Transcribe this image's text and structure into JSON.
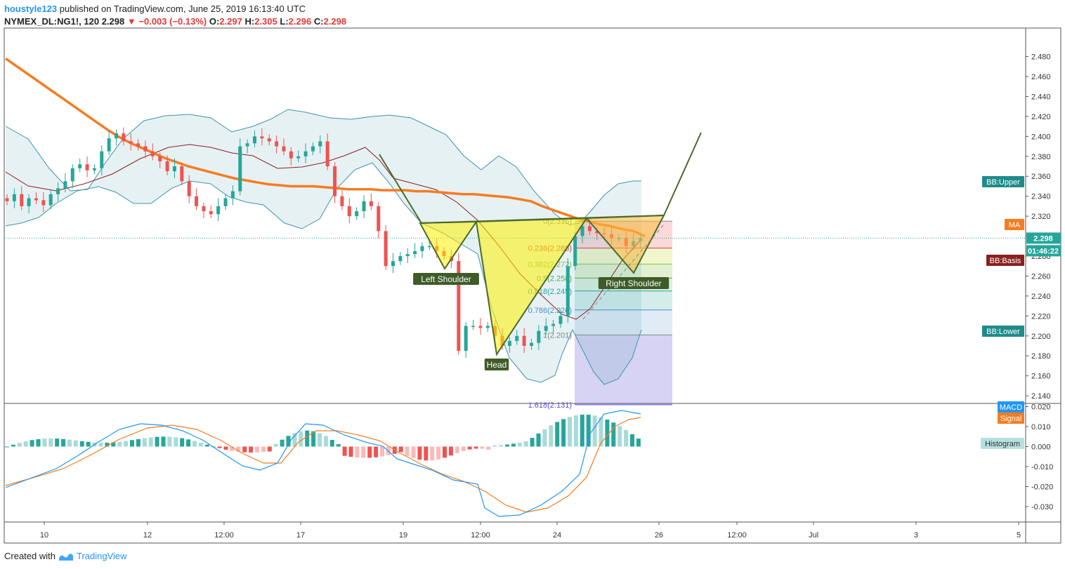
{
  "header": {
    "author": "houstyle123",
    "published": " published on TradingView.com, June 25, 2019 16:13:40 UTC",
    "symbol": "NYMEX_DL:NG1!, 120",
    "last": "2.298",
    "arrow": "▼",
    "change": "−0.003 (−0.13%)",
    "o_label": "O:",
    "o": "2.297",
    "h_label": "H:",
    "h": "2.305",
    "l_label": "L:",
    "l": "2.296",
    "c_label": "C:",
    "c": "2.298"
  },
  "footer": {
    "created": "Created with",
    "brand": "TradingView"
  },
  "colors": {
    "up": "#26a69a",
    "down": "#ef5350",
    "ma": "#f57c20",
    "bb": "#3d95a8",
    "basis": "#8b2020",
    "macd": "#2196f3",
    "signal": "#f57c20"
  },
  "chart_data": [
    {
      "type": "candlestick",
      "title": "",
      "ylim": [
        2.13,
        2.49
      ],
      "yticks": [
        "2.480",
        "2.460",
        "2.440",
        "2.420",
        "2.400",
        "2.380",
        "2.360",
        "2.340",
        "2.320",
        "2.300",
        "2.280",
        "2.260",
        "2.240",
        "2.220",
        "2.200",
        "2.180",
        "2.160",
        "2.140"
      ],
      "xticks": [
        "10",
        "12",
        "12:00",
        "17",
        "19",
        "12:00",
        "24",
        "26",
        "12:00",
        "Jul",
        "3",
        "5"
      ],
      "current_price": "2.298",
      "countdown": "01:46:22",
      "close": [
        2.335,
        2.342,
        2.33,
        2.338,
        2.336,
        2.331,
        2.342,
        2.348,
        2.355,
        2.368,
        2.372,
        2.366,
        2.368,
        2.385,
        2.398,
        2.403,
        2.395,
        2.393,
        2.39,
        2.385,
        2.38,
        2.375,
        2.365,
        2.37,
        2.355,
        2.34,
        2.33,
        2.325,
        2.322,
        2.33,
        2.338,
        2.345,
        2.39,
        2.393,
        2.4,
        2.398,
        2.395,
        2.39,
        2.385,
        2.378,
        2.38,
        2.385,
        2.39,
        2.395,
        2.37,
        2.34,
        2.33,
        2.32,
        2.325,
        2.335,
        2.33,
        2.305,
        2.27,
        2.275,
        2.28,
        2.282,
        2.285,
        2.29,
        2.29,
        2.285,
        2.28,
        2.275,
        2.185,
        2.21,
        2.21,
        2.208,
        2.21,
        2.2,
        2.19,
        2.195,
        2.2,
        2.19,
        2.193,
        2.205,
        2.21,
        2.212,
        2.22,
        2.27,
        2.3,
        2.31,
        2.305,
        2.303,
        2.302,
        2.298,
        2.298,
        2.29,
        2.295,
        2.298
      ],
      "ma": [
        2.478,
        2.47,
        2.462,
        2.454,
        2.446,
        2.438,
        2.43,
        2.422,
        2.414,
        2.406,
        2.399,
        2.393,
        2.388,
        2.383,
        2.378,
        2.374,
        2.37,
        2.367,
        2.364,
        2.361,
        2.358,
        2.356,
        2.354,
        2.352,
        2.351,
        2.35,
        2.35,
        2.35,
        2.349,
        2.348,
        2.347,
        2.347,
        2.347,
        2.346,
        2.346,
        2.346,
        2.345,
        2.345,
        2.344,
        2.343,
        2.342,
        2.342,
        2.341,
        2.34,
        2.339,
        2.337,
        2.335,
        2.33,
        2.326,
        2.322,
        2.318,
        2.315,
        2.312,
        2.31,
        2.307,
        2.305,
        2.3
      ],
      "macd": {
        "yticks": [
          "0.020",
          "0.010",
          "0.000",
          "-0.010",
          "-0.020",
          "-0.030"
        ],
        "ylim": [
          -0.038,
          0.021
        ],
        "labels": {
          "macd": "MACD",
          "signal": "Signal",
          "histogram": "Histogram"
        }
      },
      "fib": [
        {
          "r": "0",
          "p": 2.315,
          "label": "0(2.315)",
          "color": "#888888"
        },
        {
          "r": "0.236",
          "p": 2.288,
          "label": "0.236(2.288)",
          "color": "#e53935"
        },
        {
          "r": "0.382",
          "p": 2.272,
          "label": "0.382(2.272)",
          "color": "#8bc34a"
        },
        {
          "r": "0.5",
          "p": 2.258,
          "label": "0.5(2.258)",
          "color": "#4caf50"
        },
        {
          "r": "0.618",
          "p": 2.245,
          "label": "0.618(2.245)",
          "color": "#26a69a"
        },
        {
          "r": "0.786",
          "p": 2.226,
          "label": "0.786(2.226)",
          "color": "#4f8fc9"
        },
        {
          "r": "1",
          "p": 2.201,
          "label": "1(2.201)",
          "color": "#888888"
        },
        {
          "r": "1.618",
          "p": 2.131,
          "label": "1.618(2.131)",
          "color": "#5b4fd0"
        }
      ],
      "annotations": {
        "left_shoulder": "Left Shoulder",
        "head": "Head",
        "right_shoulder": "Right Shoulder"
      },
      "legend_tags": {
        "bb_upper": "BB:Upper",
        "ma": "MA",
        "bb_basis": "BB:Basis",
        "bb_lower": "BB:Lower"
      }
    }
  ]
}
